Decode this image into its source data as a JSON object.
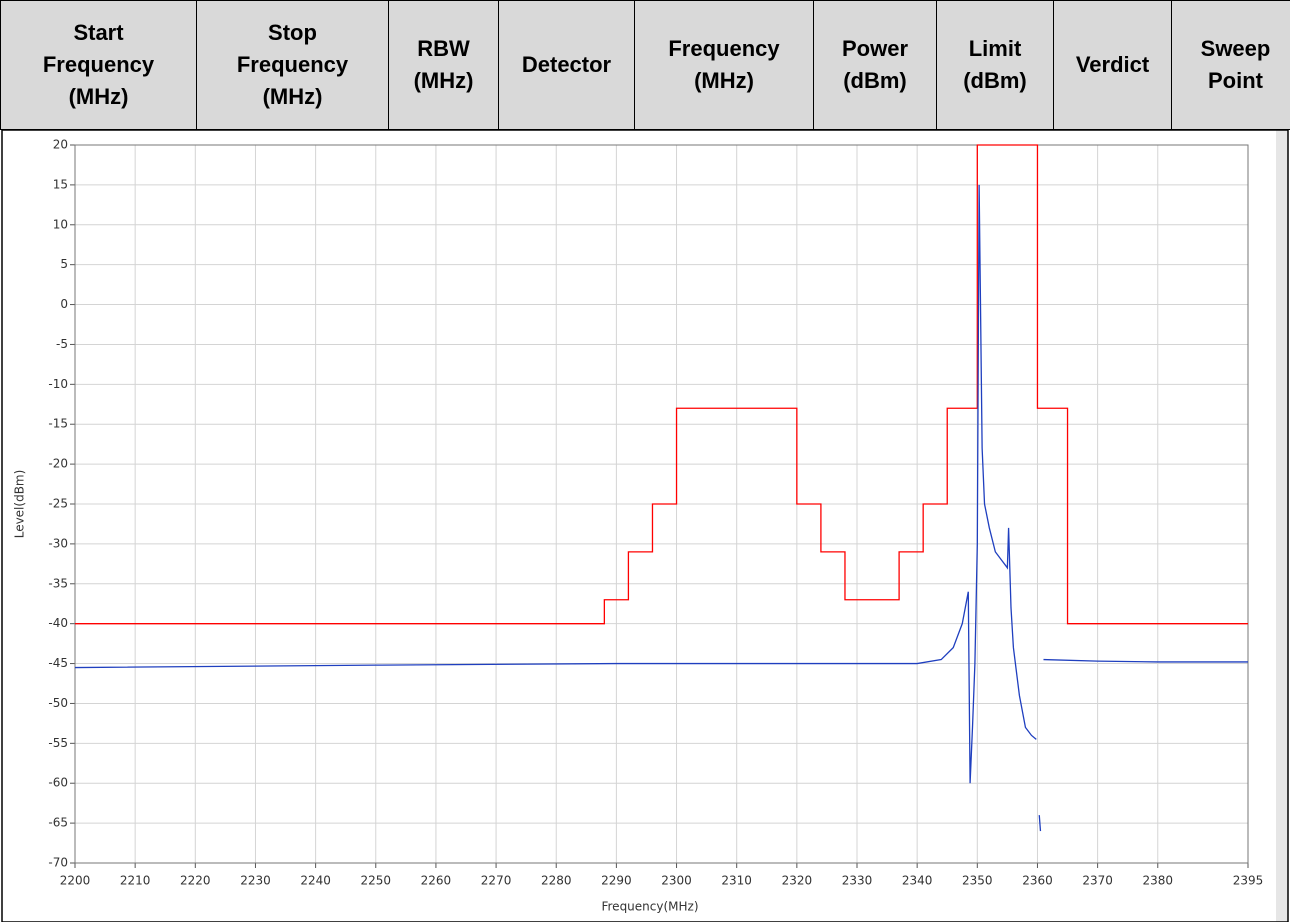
{
  "table": {
    "headers": [
      [
        "Start",
        "Frequency",
        "(MHz)"
      ],
      [
        "Stop",
        "Frequency",
        "(MHz)"
      ],
      [
        "RBW",
        "(MHz)"
      ],
      [
        "Detector"
      ],
      [
        "Frequency",
        "(MHz)"
      ],
      [
        "Power",
        "(dBm)"
      ],
      [
        "Limit",
        "(dBm)"
      ],
      [
        "Verdict"
      ],
      [
        "Sweep",
        "Point"
      ]
    ]
  },
  "chart_data": {
    "type": "line",
    "xlabel": "Frequency(MHz)",
    "ylabel": "Level(dBm)",
    "xlim": [
      2200,
      2395
    ],
    "ylim": [
      -70,
      20
    ],
    "xticks": [
      2200,
      2210,
      2220,
      2230,
      2240,
      2250,
      2260,
      2270,
      2280,
      2290,
      2300,
      2310,
      2320,
      2330,
      2340,
      2350,
      2360,
      2370,
      2380,
      2395
    ],
    "yticks": [
      20,
      15,
      10,
      5,
      0,
      -5,
      -10,
      -15,
      -20,
      -25,
      -30,
      -35,
      -40,
      -45,
      -50,
      -55,
      -60,
      -65,
      -70
    ],
    "grid": true,
    "series": [
      {
        "color": "#ff0000",
        "x": [
          2200,
          2288,
          2288,
          2292,
          2292,
          2296,
          2296,
          2300,
          2300,
          2320,
          2320,
          2324,
          2324,
          2328,
          2328,
          2337,
          2337,
          2341,
          2341,
          2345,
          2345,
          2350,
          2350,
          2360,
          2360,
          2365,
          2365,
          2395
        ],
        "values": [
          -40,
          -40,
          -37,
          -37,
          -31,
          -31,
          -25,
          -25,
          -13,
          -13,
          -25,
          -25,
          -31,
          -31,
          -37,
          -37,
          -31,
          -31,
          -25,
          -25,
          -13,
          -13,
          20,
          20,
          -13,
          -13,
          -40,
          -40
        ]
      },
      {
        "color": "#1f3fbf",
        "x": [
          2200,
          2250,
          2290,
          2300,
          2340,
          2344,
          2346,
          2347.5,
          2348.5,
          2348.8,
          2349.2,
          2349.6,
          2350,
          2350.3,
          2350.5,
          2350.8,
          2351.2,
          2352,
          2353,
          2354,
          2355,
          2355.2,
          2355.6,
          2356,
          2357,
          2358,
          2359,
          2359.8,
          2360.1,
          2360.3,
          2360.5,
          2360.8,
          2361,
          2370,
          2380,
          2395
        ],
        "values": [
          -45.5,
          -45.2,
          -45,
          -45,
          -45,
          -44.5,
          -43,
          -40,
          -36,
          -60,
          -53,
          -45,
          -30,
          15,
          2,
          -18,
          -25,
          -28,
          -31,
          -32,
          -33,
          -28,
          -38,
          -43,
          -49,
          -53,
          -54,
          -54.5,
          null,
          -64,
          -66,
          null,
          -44.5,
          -44.7,
          -44.8,
          -44.8
        ]
      }
    ]
  }
}
